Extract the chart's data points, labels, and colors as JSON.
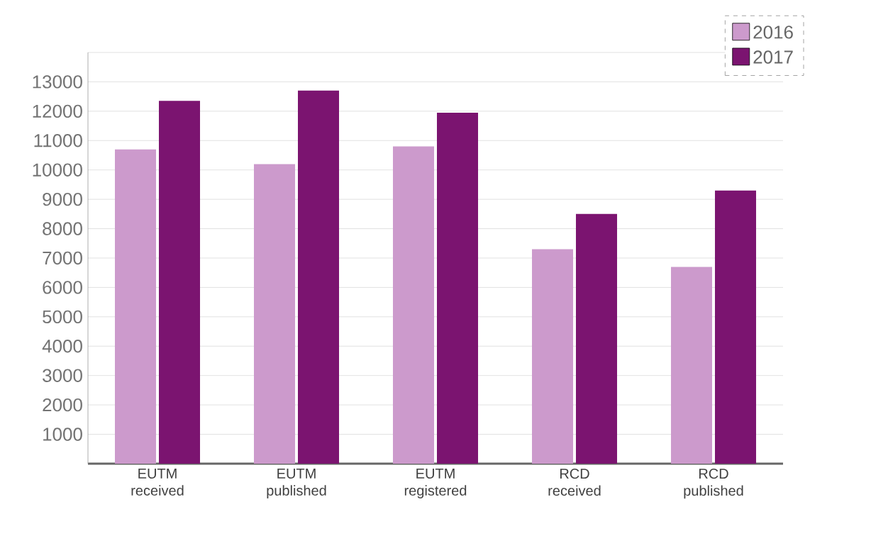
{
  "chart_data": {
    "type": "bar",
    "categories": [
      "EUTM received",
      "EUTM published",
      "EUTM registered",
      "RCD received",
      "RCD published"
    ],
    "series": [
      {
        "name": "2016",
        "color": "#cc9acc",
        "values": [
          10700,
          10200,
          10800,
          7300,
          6700
        ]
      },
      {
        "name": "2017",
        "color": "#7b1470",
        "values": [
          12350,
          12700,
          11950,
          8500,
          9300
        ]
      }
    ],
    "ylim": [
      0,
      14000
    ],
    "yticks": [
      1000,
      2000,
      3000,
      4000,
      5000,
      6000,
      7000,
      8000,
      9000,
      10000,
      11000,
      12000,
      13000,
      {
        "value": 14000,
        "label": null
      }
    ],
    "grid": "y",
    "legend": "top right"
  }
}
